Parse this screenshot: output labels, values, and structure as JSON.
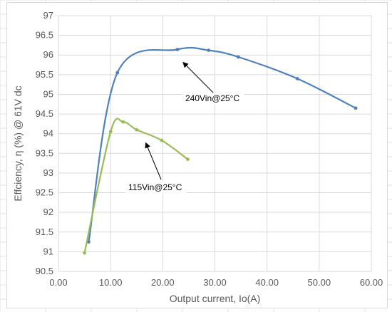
{
  "chart_data": {
    "type": "line",
    "title": "",
    "xlabel": "Output current, Io(A)",
    "ylabel": "Effciency, η (%) @ 61V dc",
    "xlim": [
      0,
      60
    ],
    "ylim": [
      90.5,
      97
    ],
    "x_ticks": [
      "0.00",
      "10.00",
      "20.00",
      "30.00",
      "40.00",
      "50.00",
      "60.00"
    ],
    "y_ticks": [
      "90.5",
      "91",
      "91.5",
      "92",
      "92.5",
      "93",
      "93.5",
      "94",
      "94.5",
      "95",
      "95.5",
      "96",
      "96.5",
      "97"
    ],
    "grid": true,
    "series": [
      {
        "name": "240Vin@25°C",
        "color": "#4f81bd",
        "points": [
          [
            5.8,
            91.25
          ],
          [
            11.3,
            95.55
          ],
          [
            22.8,
            96.14
          ],
          [
            28.8,
            96.12
          ],
          [
            34.5,
            95.95
          ],
          [
            45.8,
            95.4
          ],
          [
            57.0,
            94.65
          ]
        ]
      },
      {
        "name": "115Vin@25°C",
        "color": "#9bbb59",
        "points": [
          [
            5.0,
            90.97
          ],
          [
            10.0,
            94.05
          ],
          [
            12.4,
            94.3
          ],
          [
            15.0,
            94.1
          ],
          [
            19.8,
            93.83
          ],
          [
            24.8,
            93.35
          ]
        ]
      }
    ],
    "annotations": [
      {
        "text": "240Vin@25°C",
        "series": 0,
        "arrow_to": [
          24.0,
          95.8
        ]
      },
      {
        "text": "115Vin@25°C",
        "series": 1,
        "arrow_to": [
          16.8,
          93.75
        ]
      }
    ]
  }
}
